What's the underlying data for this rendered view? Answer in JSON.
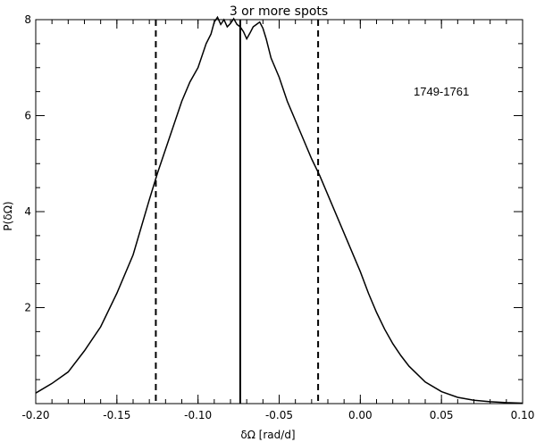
{
  "chart_data": {
    "type": "line",
    "title": "3 or more spots",
    "xlabel": "δΩ [rad/d]",
    "ylabel": "P(δΩ)",
    "xlim": [
      -0.2,
      0.1
    ],
    "ylim": [
      0,
      8
    ],
    "xticks": [
      -0.2,
      -0.15,
      -0.1,
      -0.05,
      0.0,
      0.05,
      0.1
    ],
    "xtick_labels": [
      "-0.20",
      "-0.15",
      "-0.10",
      "-0.05",
      "0.00",
      "0.05",
      "0.10"
    ],
    "yticks": [
      2,
      4,
      6,
      8
    ],
    "ytick_labels": [
      "2",
      "4",
      "6",
      "8"
    ],
    "annotation": "1749-1761",
    "series": [
      {
        "style": "solid",
        "x": [
          -0.2,
          -0.19,
          -0.18,
          -0.17,
          -0.16,
          -0.15,
          -0.14,
          -0.13,
          -0.125,
          -0.12,
          -0.115,
          -0.11,
          -0.105,
          -0.1,
          -0.095,
          -0.092,
          -0.09,
          -0.088,
          -0.086,
          -0.084,
          -0.082,
          -0.08,
          -0.078,
          -0.076,
          -0.074,
          -0.072,
          -0.07,
          -0.068,
          -0.066,
          -0.064,
          -0.062,
          -0.06,
          -0.058,
          -0.055,
          -0.05,
          -0.045,
          -0.04,
          -0.035,
          -0.03,
          -0.025,
          -0.02,
          -0.015,
          -0.01,
          -0.005,
          0.0,
          0.005,
          0.01,
          0.015,
          0.02,
          0.025,
          0.03,
          0.04,
          0.05,
          0.06,
          0.07,
          0.08,
          0.09,
          0.1
        ],
        "y": [
          0.22,
          0.42,
          0.66,
          1.1,
          1.6,
          2.3,
          3.1,
          4.25,
          4.8,
          5.3,
          5.8,
          6.3,
          6.7,
          7.0,
          7.5,
          7.7,
          7.95,
          8.05,
          7.9,
          8.0,
          7.85,
          7.92,
          8.02,
          7.9,
          7.85,
          7.75,
          7.6,
          7.72,
          7.85,
          7.9,
          7.95,
          7.82,
          7.6,
          7.2,
          6.8,
          6.3,
          5.9,
          5.5,
          5.1,
          4.75,
          4.35,
          3.95,
          3.55,
          3.15,
          2.75,
          2.3,
          1.9,
          1.55,
          1.25,
          1.0,
          0.78,
          0.45,
          0.25,
          0.13,
          0.07,
          0.04,
          0.02,
          0.01
        ]
      }
    ],
    "vertical_lines": [
      {
        "x": -0.126,
        "style": "dashed"
      },
      {
        "x": -0.074,
        "style": "solid"
      },
      {
        "x": -0.026,
        "style": "dashed"
      }
    ]
  }
}
